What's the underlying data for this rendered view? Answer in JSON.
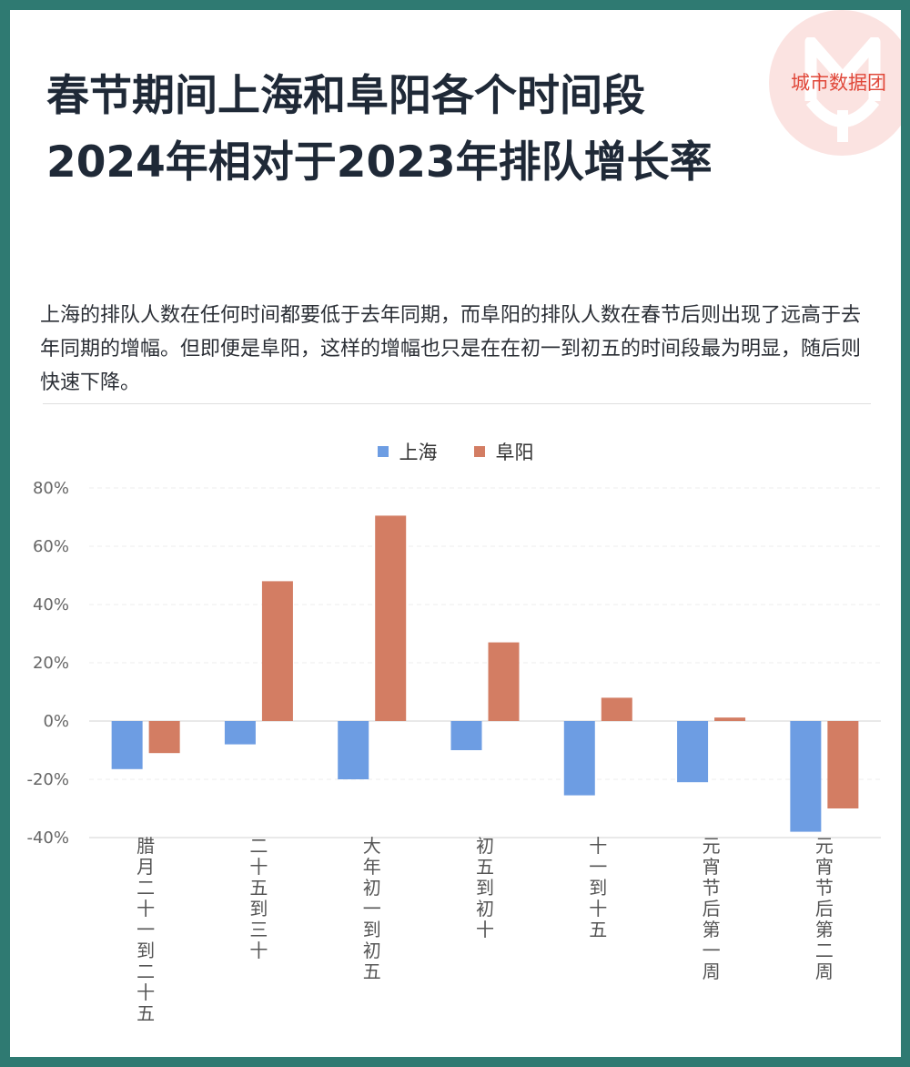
{
  "brand": {
    "name": "城市数据团",
    "color": "#e0483a"
  },
  "header": {
    "title": "春节期间上海和阜阳各个时间段2024年相对于2023年排队增长率",
    "description": "上海的排队人数在任何时间都要低于去年同期，而阜阳的排队人数在春节后则出现了远高于去年同期的增幅。但即便是阜阳，这样的增幅也只是在在初一到初五的时间段最为明显，随后则快速下降。"
  },
  "legend": [
    {
      "label": "上海",
      "color": "#6d9de3"
    },
    {
      "label": "阜阳",
      "color": "#d37d63"
    }
  ],
  "chart_data": {
    "type": "bar",
    "title": "春节期间上海和阜阳各个时间段2024年相对于2023年排队增长率",
    "xlabel": "",
    "ylabel": "",
    "categories": [
      "腊月二十一到二十五",
      "二十五到三十",
      "大年初一到初五",
      "初五到初十",
      "十一到十五",
      "元宵节后第一周",
      "元宵节后第二周"
    ],
    "series": [
      {
        "name": "上海",
        "color": "#6d9de3",
        "values": [
          -16.5,
          -8,
          -20,
          -10,
          -25.5,
          -21,
          -38
        ]
      },
      {
        "name": "阜阳",
        "color": "#d37d63",
        "values": [
          -11,
          48,
          70.5,
          27,
          8,
          1.2,
          -30
        ]
      }
    ],
    "ylim": [
      -40,
      80
    ],
    "yticks": [
      80,
      60,
      40,
      20,
      0,
      -20,
      -40
    ],
    "ytick_labels": [
      "80%",
      "60%",
      "40%",
      "20%",
      "0%",
      "-20%",
      "-40%"
    ],
    "grid": true,
    "legend_position": "top"
  }
}
